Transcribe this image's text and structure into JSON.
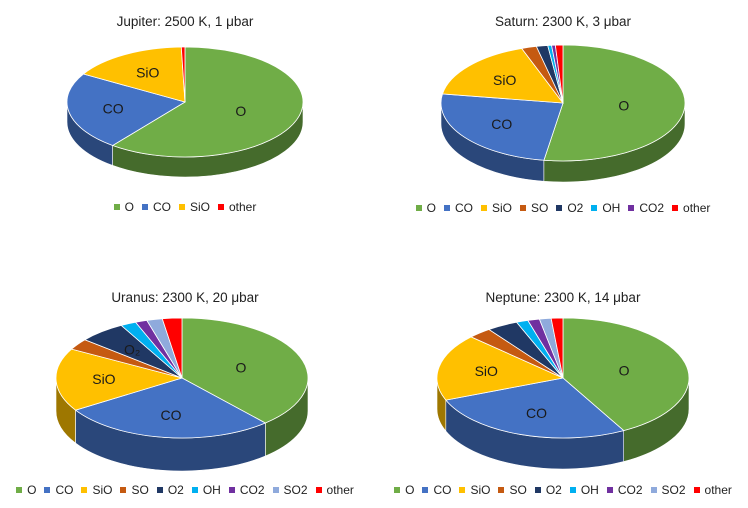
{
  "colors": {
    "O": "#70ad47",
    "CO": "#4472c4",
    "SiO": "#ffc000",
    "SO": "#c55a11",
    "O2": "#203864",
    "OH": "#00b0f0",
    "CO2": "#7030a0",
    "SO2": "#8faadc",
    "other": "#ff0000"
  },
  "chart_data": [
    {
      "type": "pie",
      "title": "Jupiter: 2500 K, 1 μbar",
      "categories": [
        "O",
        "CO",
        "SiO",
        "other"
      ],
      "values": [
        60.5,
        23,
        16,
        0.5
      ],
      "slice_labels": [
        "O",
        "CO",
        "SiO",
        ""
      ],
      "legend": [
        "O",
        "CO",
        "SiO",
        "other"
      ],
      "legend_position": "bottom",
      "style": "3d"
    },
    {
      "type": "pie",
      "title": "Saturn: 2300 K, 3 μbar",
      "categories": [
        "O",
        "CO",
        "SiO",
        "SO",
        "O2",
        "OH",
        "CO2",
        "other"
      ],
      "values": [
        52.5,
        25,
        17,
        2,
        1.5,
        0.5,
        0.5,
        1
      ],
      "slice_labels": [
        "O",
        "CO",
        "SiO",
        "",
        "",
        "",
        "",
        ""
      ],
      "legend": [
        "O",
        "CO",
        "SiO",
        "SO",
        "O2",
        "OH",
        "CO2",
        "other"
      ],
      "legend_position": "bottom",
      "style": "3d"
    },
    {
      "type": "pie",
      "title": "Uranus: 2300 K, 20 μbar",
      "categories": [
        "O",
        "CO",
        "SiO",
        "SO",
        "O2",
        "OH",
        "CO2",
        "SO2",
        "other"
      ],
      "values": [
        38.5,
        27.5,
        17,
        3,
        6,
        2,
        1.5,
        2,
        2.5
      ],
      "slice_labels": [
        "O",
        "CO",
        "SiO",
        "",
        "O₂",
        "",
        "",
        "",
        ""
      ],
      "legend": [
        "O",
        "CO",
        "SiO",
        "SO",
        "O2",
        "OH",
        "CO2",
        "SO2",
        "other"
      ],
      "legend_position": "bottom",
      "style": "3d"
    },
    {
      "type": "pie",
      "title": "Neptune: 2300 K, 14 μbar",
      "categories": [
        "O",
        "CO",
        "SiO",
        "SO",
        "O2",
        "OH",
        "CO2",
        "SO2",
        "other"
      ],
      "values": [
        42,
        27,
        18,
        3,
        4,
        1.5,
        1.5,
        1.5,
        1.5
      ],
      "slice_labels": [
        "O",
        "CO",
        "SiO",
        "",
        "",
        "",
        "",
        "",
        ""
      ],
      "legend": [
        "O",
        "CO",
        "SiO",
        "SO",
        "O2",
        "OH",
        "CO2",
        "SO2",
        "other"
      ],
      "legend_position": "bottom",
      "style": "3d"
    }
  ]
}
